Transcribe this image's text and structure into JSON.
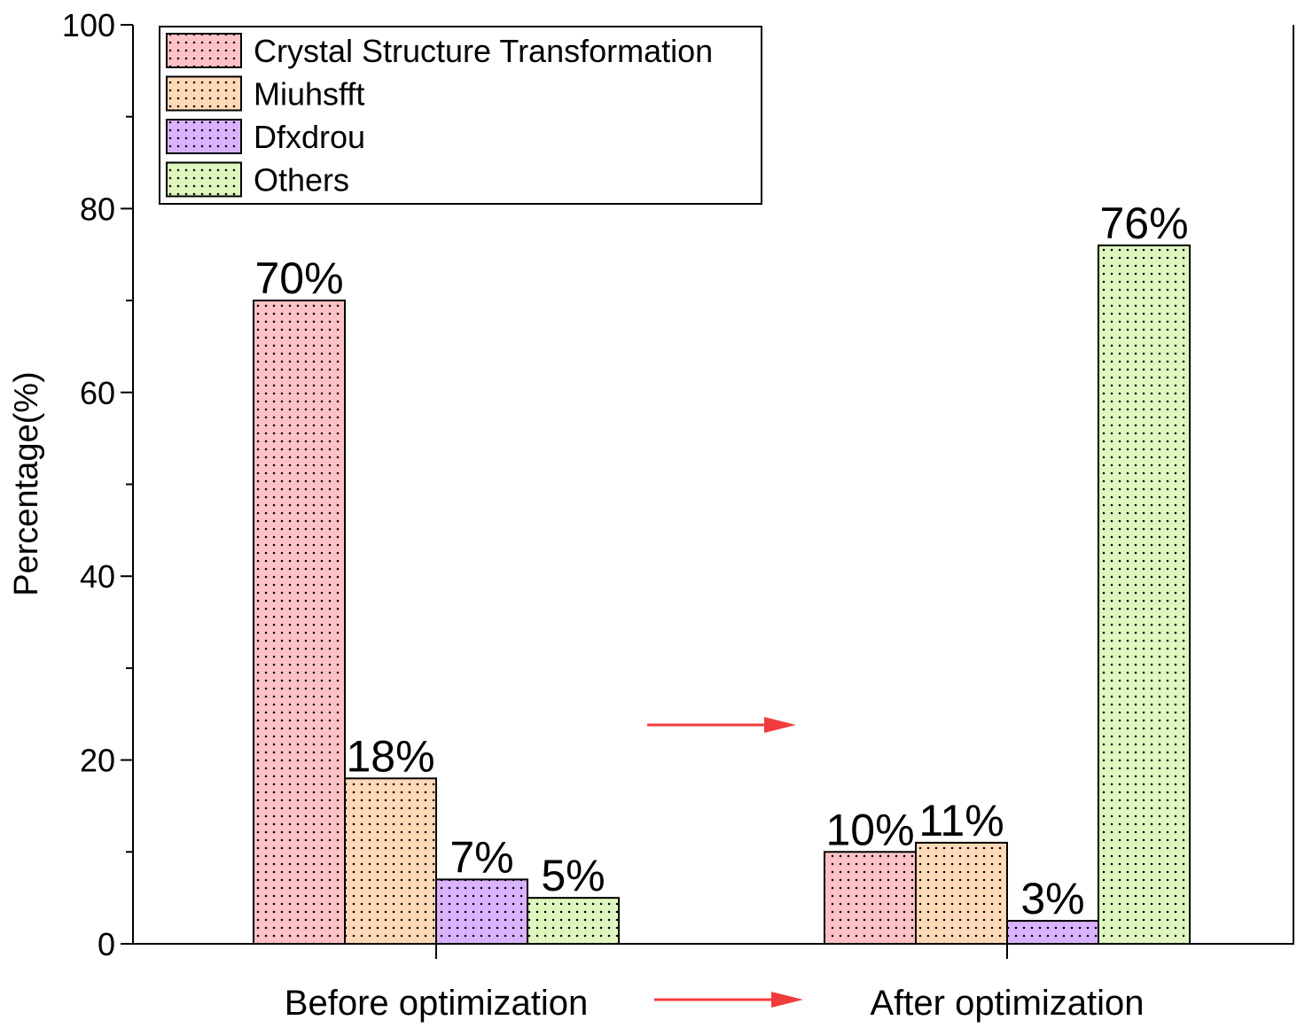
{
  "chart_data": {
    "type": "bar",
    "title": "",
    "xlabel": "",
    "ylabel": "Percentage(%)",
    "ylim": [
      0,
      100
    ],
    "yticks": [
      0,
      20,
      40,
      60,
      80,
      100
    ],
    "grid": false,
    "legend_position": "top-left",
    "categories": [
      "Before optimization",
      "After optimization"
    ],
    "series": [
      {
        "name": "Crystal Structure Transformation",
        "color": "#ffc2c4",
        "values": [
          70,
          10
        ],
        "labels": [
          "70%",
          "10%"
        ]
      },
      {
        "name": "Miuhsfft",
        "color": "#ffd9b8",
        "values": [
          18,
          11
        ],
        "labels": [
          "18%",
          "11%"
        ]
      },
      {
        "name": "Dfxdrou",
        "color": "#d9b3ff",
        "values": [
          7,
          2.5
        ],
        "labels": [
          "7%",
          "3%"
        ]
      },
      {
        "name": "Others",
        "color": "#dff7bf",
        "values": [
          5,
          76
        ],
        "labels": [
          "5%",
          "76%"
        ]
      }
    ],
    "annotations": [
      {
        "type": "arrow",
        "color": "#f03c3c",
        "direction": "right",
        "location": "between groups"
      },
      {
        "type": "arrow",
        "color": "#f03c3c",
        "direction": "right",
        "location": "between category labels"
      }
    ]
  }
}
